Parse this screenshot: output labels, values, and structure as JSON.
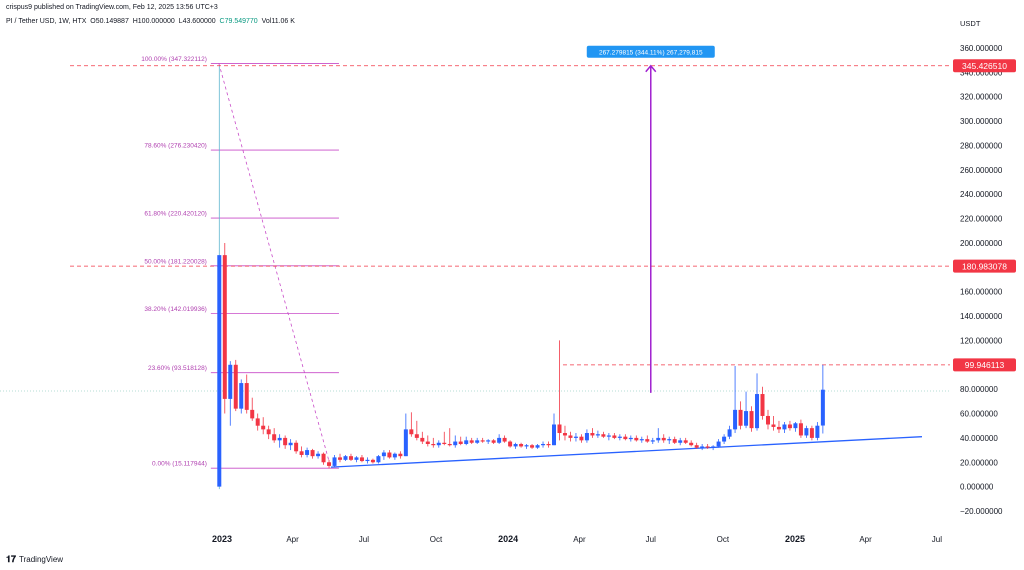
{
  "header": {
    "published": "crispus9 published on TradingView.com, Feb 12, 2025 13:56 UTC+3",
    "symbol": "PI / Tether USD, 1W, HTX",
    "open": "O50.149887",
    "high": "H100.000000",
    "low": "L43.600000",
    "close": "C79.549770",
    "volume": "Vol11.06 K"
  },
  "footer": {
    "brand": "TradingView",
    "logo_icon": "tradingview-logo-icon"
  },
  "colors": {
    "up": "#2962ff",
    "down": "#f23645",
    "fib": "#c84bc8",
    "fib_text": "#b040b0",
    "arrow": "#a020d0",
    "measure_bg": "#2196f3",
    "trendline": "#2962ff",
    "price_tag": "#f23645"
  },
  "chart_data": {
    "type": "candlestick",
    "title": "PI / Tether USD, 1W, HTX",
    "currency": "USDT",
    "y_axis": {
      "range": [
        -25,
        375
      ],
      "ticks": [
        "360.000000",
        "340.000000",
        "320.000000",
        "300.000000",
        "280.000000",
        "260.000000",
        "240.000000",
        "220.000000",
        "200.000000",
        "180.000000",
        "160.000000",
        "140.000000",
        "120.000000",
        "100.000000",
        "80.000000",
        "60.000000",
        "40.000000",
        "20.000000",
        "0.000000",
        "−20.000000"
      ]
    },
    "x_axis": {
      "ticks": [
        {
          "label": "2023",
          "date": "2023-01-01",
          "bold": true
        },
        {
          "label": "Apr",
          "date": "2023-04-01"
        },
        {
          "label": "Jul",
          "date": "2023-07-01"
        },
        {
          "label": "Oct",
          "date": "2023-10-01"
        },
        {
          "label": "2024",
          "date": "2024-01-01",
          "bold": true
        },
        {
          "label": "Apr",
          "date": "2024-04-01"
        },
        {
          "label": "Jul",
          "date": "2024-07-01"
        },
        {
          "label": "Oct",
          "date": "2024-10-01"
        },
        {
          "label": "2025",
          "date": "2025-01-01",
          "bold": true
        },
        {
          "label": "Apr",
          "date": "2025-04-01"
        },
        {
          "label": "Jul",
          "date": "2025-07-01"
        }
      ]
    },
    "price_tags": [
      {
        "label": "345.426510",
        "value": 345.43
      },
      {
        "label": "180.983078",
        "value": 180.98
      },
      {
        "label": "99.946113",
        "value": 99.95
      }
    ],
    "current_price": 79.55,
    "fibonacci": [
      {
        "label": "100.00% (347.322112)",
        "value": 347.32
      },
      {
        "label": "78.60% (276.230420)",
        "value": 276.23
      },
      {
        "label": "61.80% (220.420120)",
        "value": 220.42
      },
      {
        "label": "50.00% (181.220028)",
        "value": 181.22
      },
      {
        "label": "38.20% (142.019936)",
        "value": 142.02
      },
      {
        "label": "23.60% (93.518128)",
        "value": 93.52
      },
      {
        "label": "0.00% (15.117944)",
        "value": 15.12
      }
    ],
    "fib_range": {
      "start": "2022-12-28",
      "end": "2023-05-20"
    },
    "fib_diagonal": {
      "from": {
        "date": "2022-12-28",
        "value": 347.32
      },
      "to": {
        "date": "2023-05-20",
        "value": 15.12
      }
    },
    "measure": {
      "label": "267.279815 (344.11%) 267,279,815",
      "date": "2024-07-01",
      "from": 77,
      "to": 345.43
    },
    "trendline": {
      "from": {
        "date": "2023-05-20",
        "value": 16
      },
      "to": {
        "date": "2025-06-12",
        "value": 41
      }
    },
    "candles": [
      {
        "date": "2022-12-26",
        "open": 0,
        "high": 345,
        "low": -2,
        "close": 190
      },
      {
        "date": "2023-01-02",
        "open": 190,
        "high": 200,
        "low": 60,
        "close": 72
      },
      {
        "date": "2023-01-09",
        "open": 72,
        "high": 103,
        "low": 50,
        "close": 100
      },
      {
        "date": "2023-01-16",
        "open": 100,
        "high": 104,
        "low": 62,
        "close": 64
      },
      {
        "date": "2023-01-23",
        "open": 64,
        "high": 88,
        "low": 60,
        "close": 85
      },
      {
        "date": "2023-01-30",
        "open": 85,
        "high": 92,
        "low": 60,
        "close": 63
      },
      {
        "date": "2023-02-06",
        "open": 63,
        "high": 73,
        "low": 54,
        "close": 56
      },
      {
        "date": "2023-02-13",
        "open": 56,
        "high": 60,
        "low": 46,
        "close": 50
      },
      {
        "date": "2023-02-20",
        "open": 50,
        "high": 57,
        "low": 43,
        "close": 47
      },
      {
        "date": "2023-02-27",
        "open": 47,
        "high": 50,
        "low": 39,
        "close": 43
      },
      {
        "date": "2023-03-06",
        "open": 43,
        "high": 48,
        "low": 36,
        "close": 38
      },
      {
        "date": "2023-03-13",
        "open": 38,
        "high": 43,
        "low": 32,
        "close": 40
      },
      {
        "date": "2023-03-20",
        "open": 40,
        "high": 42,
        "low": 31,
        "close": 34
      },
      {
        "date": "2023-03-27",
        "open": 34,
        "high": 39,
        "low": 30,
        "close": 36
      },
      {
        "date": "2023-04-03",
        "open": 36,
        "high": 38,
        "low": 27,
        "close": 29
      },
      {
        "date": "2023-04-10",
        "open": 29,
        "high": 33,
        "low": 24,
        "close": 26
      },
      {
        "date": "2023-04-17",
        "open": 26,
        "high": 32,
        "low": 24,
        "close": 30
      },
      {
        "date": "2023-04-24",
        "open": 30,
        "high": 31,
        "low": 23,
        "close": 25
      },
      {
        "date": "2023-05-01",
        "open": 25,
        "high": 29,
        "low": 23,
        "close": 27
      },
      {
        "date": "2023-05-08",
        "open": 27,
        "high": 28,
        "low": 18,
        "close": 20
      },
      {
        "date": "2023-05-15",
        "open": 20,
        "high": 22,
        "low": 15,
        "close": 17
      },
      {
        "date": "2023-05-22",
        "open": 17,
        "high": 26,
        "low": 16,
        "close": 24
      },
      {
        "date": "2023-05-29",
        "open": 24,
        "high": 27,
        "low": 20,
        "close": 22
      },
      {
        "date": "2023-06-05",
        "open": 22,
        "high": 26,
        "low": 21,
        "close": 25
      },
      {
        "date": "2023-06-12",
        "open": 25,
        "high": 27,
        "low": 21,
        "close": 22
      },
      {
        "date": "2023-06-19",
        "open": 22,
        "high": 25,
        "low": 20,
        "close": 24
      },
      {
        "date": "2023-06-26",
        "open": 24,
        "high": 26,
        "low": 20,
        "close": 21
      },
      {
        "date": "2023-07-03",
        "open": 21,
        "high": 24,
        "low": 19,
        "close": 22
      },
      {
        "date": "2023-07-10",
        "open": 22,
        "high": 23,
        "low": 19,
        "close": 20
      },
      {
        "date": "2023-07-17",
        "open": 20,
        "high": 26,
        "low": 19,
        "close": 25
      },
      {
        "date": "2023-07-24",
        "open": 25,
        "high": 30,
        "low": 22,
        "close": 28
      },
      {
        "date": "2023-07-31",
        "open": 28,
        "high": 30,
        "low": 23,
        "close": 24
      },
      {
        "date": "2023-08-07",
        "open": 24,
        "high": 28,
        "low": 22,
        "close": 27
      },
      {
        "date": "2023-08-14",
        "open": 27,
        "high": 29,
        "low": 23,
        "close": 25
      },
      {
        "date": "2023-08-21",
        "open": 25,
        "high": 60,
        "low": 25,
        "close": 47
      },
      {
        "date": "2023-08-28",
        "open": 47,
        "high": 61,
        "low": 41,
        "close": 43
      },
      {
        "date": "2023-09-04",
        "open": 43,
        "high": 54,
        "low": 38,
        "close": 40
      },
      {
        "date": "2023-09-11",
        "open": 40,
        "high": 45,
        "low": 35,
        "close": 37
      },
      {
        "date": "2023-09-18",
        "open": 37,
        "high": 42,
        "low": 33,
        "close": 35
      },
      {
        "date": "2023-09-25",
        "open": 35,
        "high": 40,
        "low": 32,
        "close": 34
      },
      {
        "date": "2023-10-02",
        "open": 34,
        "high": 38,
        "low": 32,
        "close": 36
      },
      {
        "date": "2023-10-09",
        "open": 36,
        "high": 45,
        "low": 34,
        "close": 35
      },
      {
        "date": "2023-10-16",
        "open": 35,
        "high": 48,
        "low": 33,
        "close": 34
      },
      {
        "date": "2023-10-23",
        "open": 34,
        "high": 42,
        "low": 32,
        "close": 37
      },
      {
        "date": "2023-10-30",
        "open": 37,
        "high": 41,
        "low": 34,
        "close": 35
      },
      {
        "date": "2023-11-06",
        "open": 35,
        "high": 41,
        "low": 34,
        "close": 38
      },
      {
        "date": "2023-11-13",
        "open": 38,
        "high": 40,
        "low": 35,
        "close": 36
      },
      {
        "date": "2023-11-20",
        "open": 36,
        "high": 40,
        "low": 35,
        "close": 38
      },
      {
        "date": "2023-11-27",
        "open": 38,
        "high": 40,
        "low": 36,
        "close": 37
      },
      {
        "date": "2023-12-04",
        "open": 37,
        "high": 39,
        "low": 35,
        "close": 38
      },
      {
        "date": "2023-12-11",
        "open": 38,
        "high": 39,
        "low": 35,
        "close": 36
      },
      {
        "date": "2023-12-18",
        "open": 36,
        "high": 43,
        "low": 35,
        "close": 40
      },
      {
        "date": "2023-12-25",
        "open": 40,
        "high": 42,
        "low": 36,
        "close": 37
      },
      {
        "date": "2024-01-01",
        "open": 37,
        "high": 38,
        "low": 32,
        "close": 33
      },
      {
        "date": "2024-01-08",
        "open": 33,
        "high": 36,
        "low": 31,
        "close": 35
      },
      {
        "date": "2024-01-15",
        "open": 35,
        "high": 36,
        "low": 32,
        "close": 33
      },
      {
        "date": "2024-01-22",
        "open": 33,
        "high": 35,
        "low": 31,
        "close": 34
      },
      {
        "date": "2024-01-29",
        "open": 34,
        "high": 35,
        "low": 31,
        "close": 32
      },
      {
        "date": "2024-02-05",
        "open": 32,
        "high": 35,
        "low": 31,
        "close": 34
      },
      {
        "date": "2024-02-12",
        "open": 34,
        "high": 37,
        "low": 32,
        "close": 35
      },
      {
        "date": "2024-02-19",
        "open": 35,
        "high": 37,
        "low": 32,
        "close": 34
      },
      {
        "date": "2024-02-26",
        "open": 34,
        "high": 60,
        "low": 34,
        "close": 51
      },
      {
        "date": "2024-03-04",
        "open": 51,
        "high": 120,
        "low": 38,
        "close": 44
      },
      {
        "date": "2024-03-11",
        "open": 44,
        "high": 50,
        "low": 38,
        "close": 42
      },
      {
        "date": "2024-03-18",
        "open": 42,
        "high": 45,
        "low": 37,
        "close": 40
      },
      {
        "date": "2024-03-25",
        "open": 40,
        "high": 44,
        "low": 37,
        "close": 41
      },
      {
        "date": "2024-04-01",
        "open": 41,
        "high": 43,
        "low": 36,
        "close": 38
      },
      {
        "date": "2024-04-08",
        "open": 38,
        "high": 47,
        "low": 36,
        "close": 44
      },
      {
        "date": "2024-04-15",
        "open": 44,
        "high": 48,
        "low": 40,
        "close": 42
      },
      {
        "date": "2024-04-22",
        "open": 42,
        "high": 46,
        "low": 40,
        "close": 43
      },
      {
        "date": "2024-04-29",
        "open": 43,
        "high": 45,
        "low": 40,
        "close": 41
      },
      {
        "date": "2024-05-06",
        "open": 41,
        "high": 44,
        "low": 38,
        "close": 42
      },
      {
        "date": "2024-05-13",
        "open": 42,
        "high": 44,
        "low": 39,
        "close": 40
      },
      {
        "date": "2024-05-20",
        "open": 40,
        "high": 43,
        "low": 38,
        "close": 41
      },
      {
        "date": "2024-05-27",
        "open": 41,
        "high": 43,
        "low": 38,
        "close": 39
      },
      {
        "date": "2024-06-03",
        "open": 39,
        "high": 42,
        "low": 37,
        "close": 40
      },
      {
        "date": "2024-06-10",
        "open": 40,
        "high": 42,
        "low": 37,
        "close": 38
      },
      {
        "date": "2024-06-17",
        "open": 38,
        "high": 41,
        "low": 36,
        "close": 39
      },
      {
        "date": "2024-06-24",
        "open": 39,
        "high": 42,
        "low": 36,
        "close": 37
      },
      {
        "date": "2024-07-01",
        "open": 37,
        "high": 40,
        "low": 35,
        "close": 38
      },
      {
        "date": "2024-07-08",
        "open": 38,
        "high": 48,
        "low": 36,
        "close": 40
      },
      {
        "date": "2024-07-15",
        "open": 40,
        "high": 43,
        "low": 36,
        "close": 38
      },
      {
        "date": "2024-07-22",
        "open": 38,
        "high": 41,
        "low": 35,
        "close": 39
      },
      {
        "date": "2024-07-29",
        "open": 39,
        "high": 41,
        "low": 35,
        "close": 36
      },
      {
        "date": "2024-08-05",
        "open": 36,
        "high": 40,
        "low": 34,
        "close": 38
      },
      {
        "date": "2024-08-12",
        "open": 38,
        "high": 40,
        "low": 35,
        "close": 36
      },
      {
        "date": "2024-08-19",
        "open": 36,
        "high": 38,
        "low": 33,
        "close": 34
      },
      {
        "date": "2024-08-26",
        "open": 34,
        "high": 36,
        "low": 31,
        "close": 32
      },
      {
        "date": "2024-09-02",
        "open": 32,
        "high": 35,
        "low": 30,
        "close": 33
      },
      {
        "date": "2024-09-09",
        "open": 33,
        "high": 35,
        "low": 31,
        "close": 32
      },
      {
        "date": "2024-09-16",
        "open": 32,
        "high": 34,
        "low": 30,
        "close": 33
      },
      {
        "date": "2024-09-23",
        "open": 33,
        "high": 39,
        "low": 32,
        "close": 37
      },
      {
        "date": "2024-09-30",
        "open": 37,
        "high": 43,
        "low": 35,
        "close": 41
      },
      {
        "date": "2024-10-07",
        "open": 41,
        "high": 50,
        "low": 39,
        "close": 47
      },
      {
        "date": "2024-10-14",
        "open": 47,
        "high": 99,
        "low": 44,
        "close": 63
      },
      {
        "date": "2024-10-21",
        "open": 63,
        "high": 70,
        "low": 47,
        "close": 50
      },
      {
        "date": "2024-10-28",
        "open": 50,
        "high": 78,
        "low": 48,
        "close": 62
      },
      {
        "date": "2024-11-04",
        "open": 62,
        "high": 66,
        "low": 45,
        "close": 48
      },
      {
        "date": "2024-11-11",
        "open": 48,
        "high": 93,
        "low": 46,
        "close": 76
      },
      {
        "date": "2024-11-18",
        "open": 76,
        "high": 82,
        "low": 55,
        "close": 58
      },
      {
        "date": "2024-11-25",
        "open": 58,
        "high": 63,
        "low": 47,
        "close": 51
      },
      {
        "date": "2024-12-02",
        "open": 51,
        "high": 58,
        "low": 46,
        "close": 49
      },
      {
        "date": "2024-12-09",
        "open": 49,
        "high": 54,
        "low": 44,
        "close": 47
      },
      {
        "date": "2024-12-16",
        "open": 47,
        "high": 53,
        "low": 44,
        "close": 51
      },
      {
        "date": "2024-12-23",
        "open": 51,
        "high": 54,
        "low": 46,
        "close": 48
      },
      {
        "date": "2024-12-30",
        "open": 48,
        "high": 53,
        "low": 45,
        "close": 52
      },
      {
        "date": "2025-01-06",
        "open": 52,
        "high": 55,
        "low": 40,
        "close": 42
      },
      {
        "date": "2025-01-13",
        "open": 42,
        "high": 50,
        "low": 40,
        "close": 48
      },
      {
        "date": "2025-01-20",
        "open": 48,
        "high": 50,
        "low": 38,
        "close": 40
      },
      {
        "date": "2025-01-27",
        "open": 40,
        "high": 53,
        "low": 38,
        "close": 50
      },
      {
        "date": "2025-02-03",
        "open": 50.15,
        "high": 100,
        "low": 43.6,
        "close": 79.55
      }
    ]
  }
}
